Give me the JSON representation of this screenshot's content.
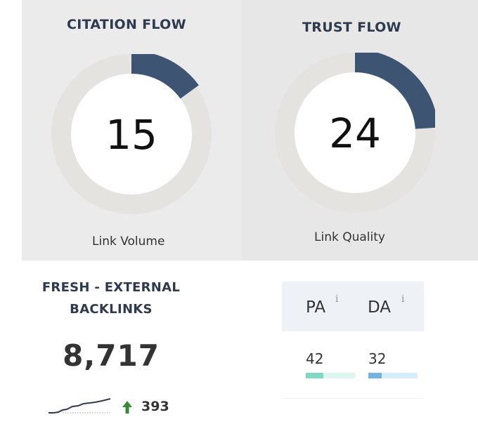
{
  "citation_flow": {
    "title": "CITATION FLOW",
    "value": "15",
    "subtitle": "Link Volume",
    "fraction": 0.15
  },
  "trust_flow": {
    "title": "TRUST FLOW",
    "value": "24",
    "subtitle": "Link Quality",
    "fraction": 0.24
  },
  "fresh_backlinks": {
    "title_line1": "FRESH - EXTERNAL",
    "title_line2": "BACKLINKS",
    "value": "8,717",
    "delta": "393",
    "trend_icon": "up-arrow-icon",
    "trend_color": "#3a8a3a"
  },
  "page_authority": {
    "label": "PA",
    "info": "i",
    "value": "42",
    "fraction": 0.42,
    "bar_color": "#7fd9c3",
    "track_color": "#dcf5ee"
  },
  "domain_authority": {
    "label": "DA",
    "info": "i",
    "value": "32",
    "fraction": 0.32,
    "bar_color": "#72b3e3",
    "track_color": "#d6ecf8"
  },
  "colors": {
    "donut_track": "#e5e3e0",
    "donut_fill": "#3d5573",
    "donut_center": "#ffffff"
  }
}
